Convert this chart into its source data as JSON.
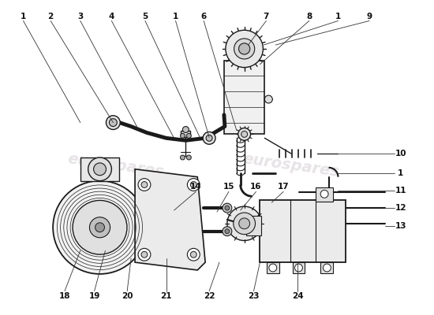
{
  "background_color": "#ffffff",
  "watermark_color": "#ddd8dd",
  "fig_width": 5.5,
  "fig_height": 4.0,
  "dpi": 100,
  "label_fontsize": 7.0,
  "label_color": "#111111",
  "lc": "#1a1a1a"
}
